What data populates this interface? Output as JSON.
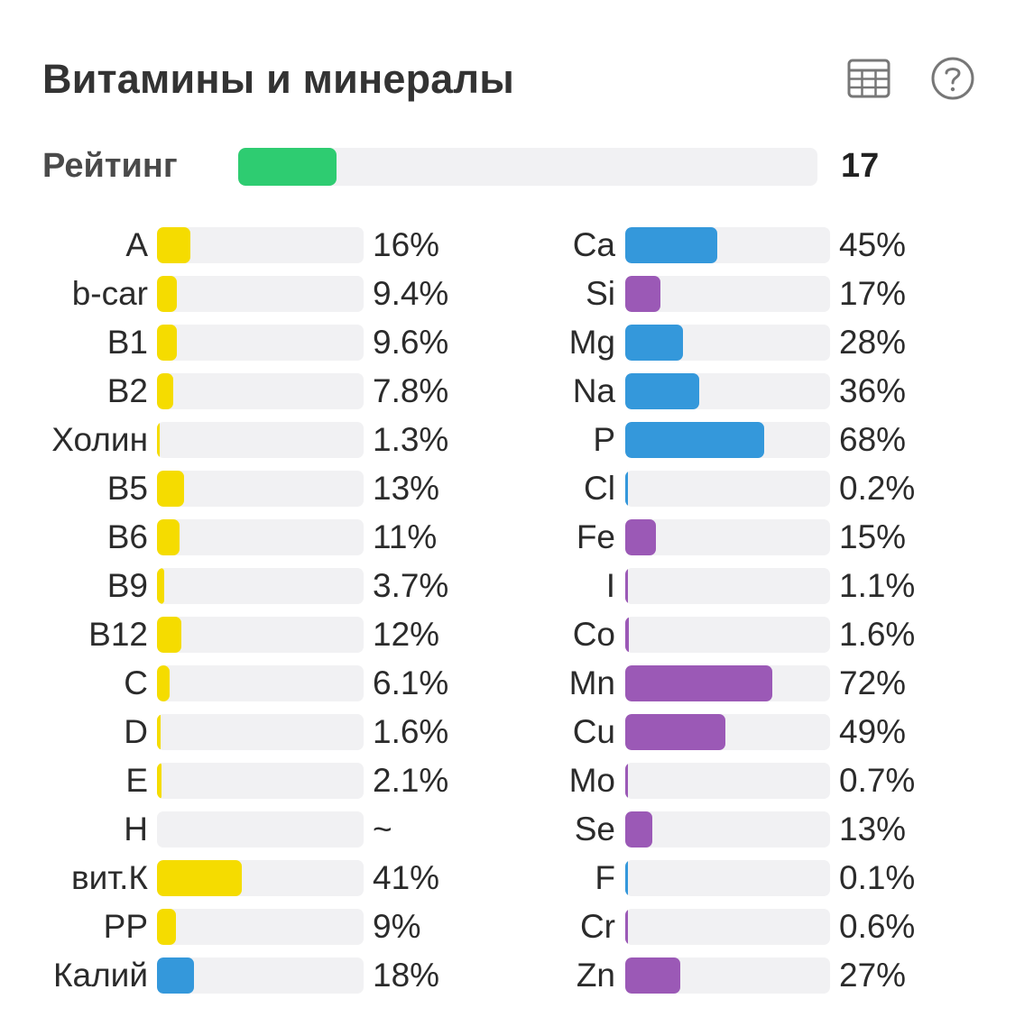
{
  "header": {
    "title": "Витамины и минералы",
    "table_icon": "table-grid-icon",
    "help_icon": "help-question-icon"
  },
  "rating": {
    "label": "Рейтинг",
    "value": "17",
    "fill_percent": 17,
    "color": "#2ecc71"
  },
  "colors": {
    "vitamin": "#f5dc00",
    "mineral_blue": "#3498db",
    "mineral_purple": "#9b59b6",
    "track": "#f1f1f3"
  },
  "vitamins": [
    {
      "label": "A",
      "value": "16%",
      "percent": 16,
      "color": "#f5dc00"
    },
    {
      "label": "b-car",
      "value": "9.4%",
      "percent": 9.4,
      "color": "#f5dc00"
    },
    {
      "label": "B1",
      "value": "9.6%",
      "percent": 9.6,
      "color": "#f5dc00"
    },
    {
      "label": "B2",
      "value": "7.8%",
      "percent": 7.8,
      "color": "#f5dc00"
    },
    {
      "label": "Холин",
      "value": "1.3%",
      "percent": 1.3,
      "color": "#f5dc00"
    },
    {
      "label": "B5",
      "value": "13%",
      "percent": 13,
      "color": "#f5dc00"
    },
    {
      "label": "B6",
      "value": "11%",
      "percent": 11,
      "color": "#f5dc00"
    },
    {
      "label": "B9",
      "value": "3.7%",
      "percent": 3.7,
      "color": "#f5dc00"
    },
    {
      "label": "B12",
      "value": "12%",
      "percent": 12,
      "color": "#f5dc00"
    },
    {
      "label": "C",
      "value": "6.1%",
      "percent": 6.1,
      "color": "#f5dc00"
    },
    {
      "label": "D",
      "value": "1.6%",
      "percent": 1.6,
      "color": "#f5dc00"
    },
    {
      "label": "E",
      "value": "2.1%",
      "percent": 2.1,
      "color": "#f5dc00"
    },
    {
      "label": "H",
      "value": "~",
      "percent": 0,
      "color": "#f5dc00"
    },
    {
      "label": "вит.К",
      "value": "41%",
      "percent": 41,
      "color": "#f5dc00"
    },
    {
      "label": "PP",
      "value": "9%",
      "percent": 9,
      "color": "#f5dc00"
    },
    {
      "label": "Калий",
      "value": "18%",
      "percent": 18,
      "color": "#3498db"
    }
  ],
  "minerals": [
    {
      "label": "Ca",
      "value": "45%",
      "percent": 45,
      "color": "#3498db"
    },
    {
      "label": "Si",
      "value": "17%",
      "percent": 17,
      "color": "#9b59b6"
    },
    {
      "label": "Mg",
      "value": "28%",
      "percent": 28,
      "color": "#3498db"
    },
    {
      "label": "Na",
      "value": "36%",
      "percent": 36,
      "color": "#3498db"
    },
    {
      "label": "P",
      "value": "68%",
      "percent": 68,
      "color": "#3498db"
    },
    {
      "label": "Cl",
      "value": "0.2%",
      "percent": 0.2,
      "color": "#3498db"
    },
    {
      "label": "Fe",
      "value": "15%",
      "percent": 15,
      "color": "#9b59b6"
    },
    {
      "label": "I",
      "value": "1.1%",
      "percent": 1.1,
      "color": "#9b59b6"
    },
    {
      "label": "Co",
      "value": "1.6%",
      "percent": 1.6,
      "color": "#9b59b6"
    },
    {
      "label": "Mn",
      "value": "72%",
      "percent": 72,
      "color": "#9b59b6"
    },
    {
      "label": "Cu",
      "value": "49%",
      "percent": 49,
      "color": "#9b59b6"
    },
    {
      "label": "Mo",
      "value": "0.7%",
      "percent": 0.7,
      "color": "#9b59b6"
    },
    {
      "label": "Se",
      "value": "13%",
      "percent": 13,
      "color": "#9b59b6"
    },
    {
      "label": "F",
      "value": "0.1%",
      "percent": 0.1,
      "color": "#3498db"
    },
    {
      "label": "Cr",
      "value": "0.6%",
      "percent": 0.6,
      "color": "#9b59b6"
    },
    {
      "label": "Zn",
      "value": "27%",
      "percent": 27,
      "color": "#9b59b6"
    }
  ]
}
